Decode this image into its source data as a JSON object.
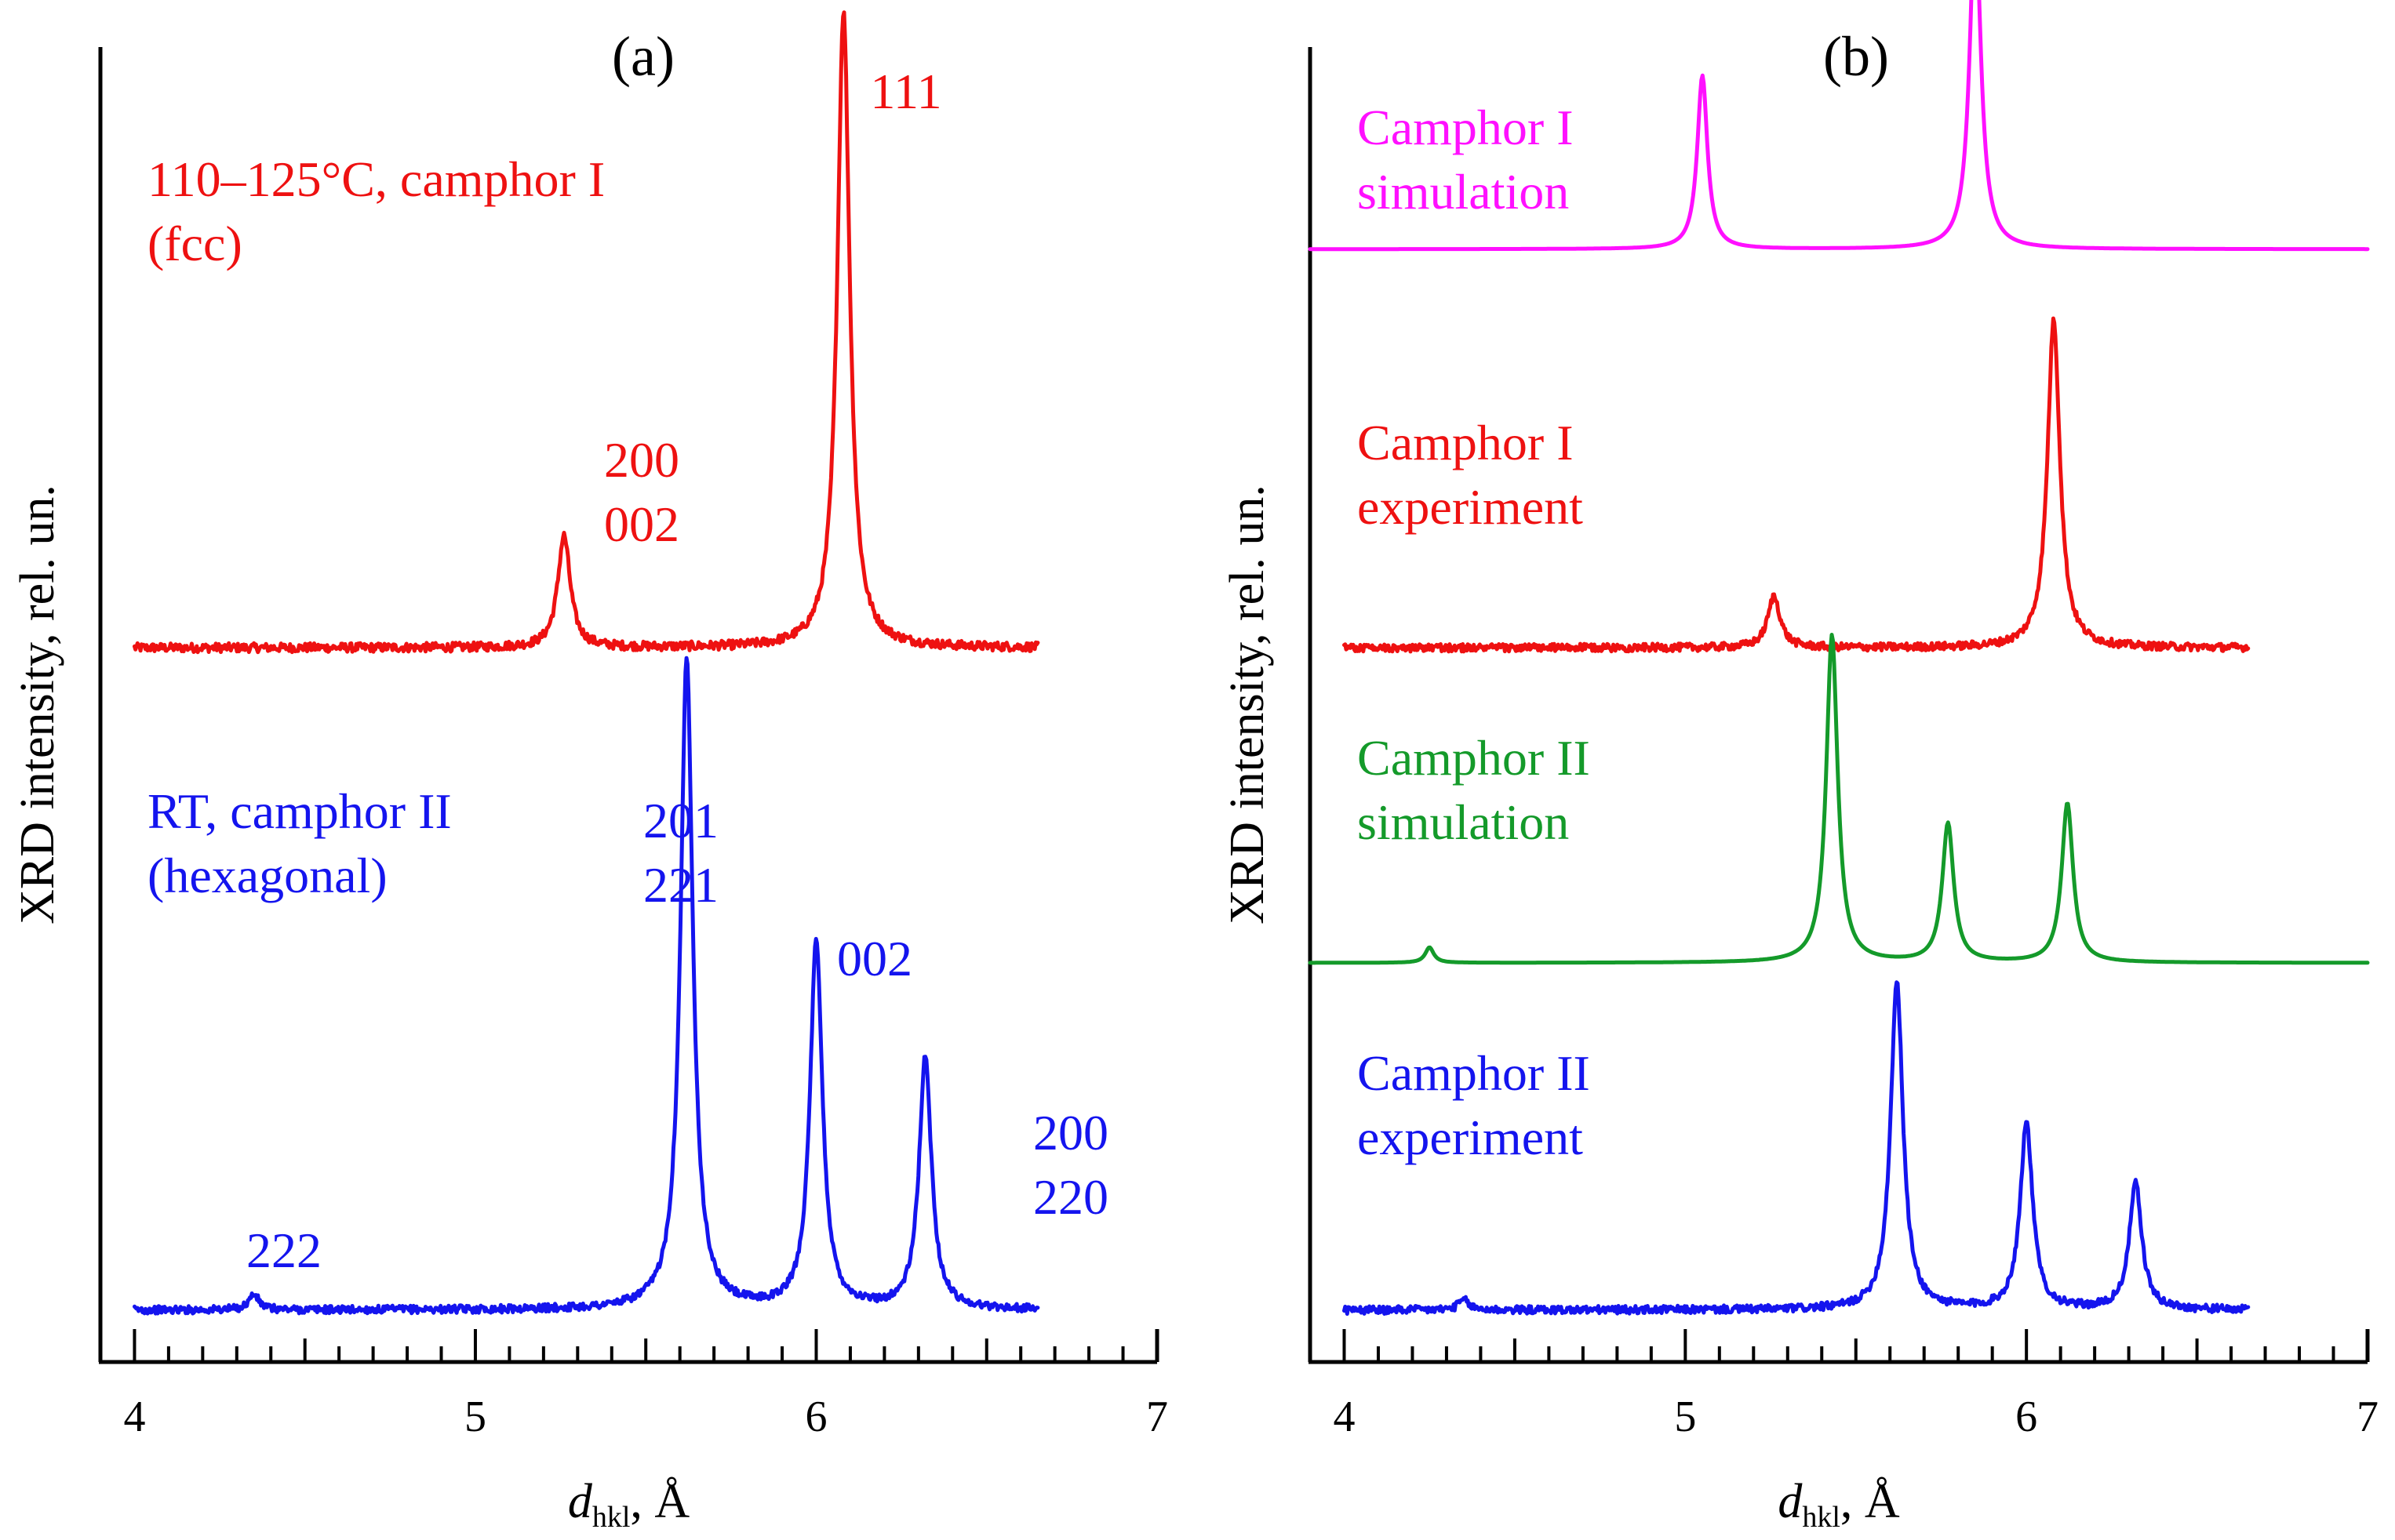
{
  "colors": {
    "red": "#ee1111",
    "blue": "#1414ee",
    "green": "#149a2a",
    "magenta": "#ff10ff",
    "axis": "#000000"
  },
  "chart_data": [
    {
      "type": "line",
      "panel_label": "(a)",
      "xlabel_main": "d",
      "xlabel_sub": "hkl",
      "xlabel_unit": ", Å",
      "ylabel": "XRD intensity, rel. un.",
      "xlim": [
        3.9,
        7.0
      ],
      "x_major_ticks": [
        4,
        5,
        6,
        7
      ],
      "x_minor_step": 0.1,
      "ylim": [
        0,
        1
      ],
      "series": [
        {
          "name": "110–125°C, camphor I (fcc)",
          "label_lines": [
            "110–125°C, camphor I",
            "(fcc)"
          ],
          "color": "#ee1111",
          "x_range": [
            4.0,
            6.65
          ],
          "baseline": 0.545,
          "noise": 0.0035,
          "peaks": [
            {
              "x": 5.26,
              "h": 0.087,
              "w": 0.022,
              "hkl": [
                "200",
                "002"
              ]
            },
            {
              "x": 6.08,
              "h": 0.495,
              "w": 0.022,
              "hkl": [
                "111"
              ]
            }
          ]
        },
        {
          "name": "RT, camphor II (hexagonal)",
          "label_lines": [
            "RT, camphor II",
            "(hexagonal)"
          ],
          "color": "#1414ee",
          "x_range": [
            4.0,
            6.65
          ],
          "baseline": 0.03,
          "noise": 0.003,
          "peaks": [
            {
              "x": 4.35,
              "h": 0.012,
              "w": 0.018,
              "hkl": [
                "222"
              ]
            },
            {
              "x": 5.62,
              "h": 0.505,
              "w": 0.022,
              "hkl": [
                "201",
                "221"
              ]
            },
            {
              "x": 6.0,
              "h": 0.285,
              "w": 0.022,
              "hkl": [
                "002"
              ]
            },
            {
              "x": 6.32,
              "h": 0.195,
              "w": 0.022,
              "hkl": [
                "200",
                "220"
              ]
            }
          ]
        }
      ]
    },
    {
      "type": "line",
      "panel_label": "(b)",
      "xlabel_main": "d",
      "xlabel_sub": "hkl",
      "xlabel_unit": ", Å",
      "ylabel": "XRD intensity, rel. un.",
      "xlim": [
        3.9,
        7.0
      ],
      "x_major_ticks": [
        4,
        5,
        6,
        7
      ],
      "x_minor_step": 0.1,
      "ylim": [
        0,
        1
      ],
      "series": [
        {
          "name": "Camphor I simulation",
          "label_lines": [
            "Camphor I",
            "simulation"
          ],
          "color": "#ff10ff",
          "x_range": [
            3.9,
            7.0
          ],
          "baseline": 0.855,
          "noise": 0.0,
          "peaks": [
            {
              "x": 5.05,
              "h": 0.135,
              "w": 0.018
            },
            {
              "x": 5.85,
              "h": 0.26,
              "w": 0.02
            }
          ]
        },
        {
          "name": "Camphor I experiment",
          "label_lines": [
            "Camphor I",
            "experiment"
          ],
          "color": "#ee1111",
          "x_range": [
            4.0,
            6.65
          ],
          "baseline": 0.545,
          "noise": 0.003,
          "peaks": [
            {
              "x": 5.26,
              "h": 0.04,
              "w": 0.022
            },
            {
              "x": 6.08,
              "h": 0.255,
              "w": 0.022
            }
          ]
        },
        {
          "name": "Camphor II simulation",
          "label_lines": [
            "Camphor II",
            "simulation"
          ],
          "color": "#149a2a",
          "x_range": [
            3.9,
            7.0
          ],
          "baseline": 0.3,
          "noise": 0.0,
          "peaks": [
            {
              "x": 4.25,
              "h": 0.012,
              "w": 0.015
            },
            {
              "x": 5.43,
              "h": 0.255,
              "w": 0.02
            },
            {
              "x": 5.77,
              "h": 0.108,
              "w": 0.02
            },
            {
              "x": 6.12,
              "h": 0.124,
              "w": 0.02
            }
          ]
        },
        {
          "name": "Camphor II experiment",
          "label_lines": [
            "Camphor II",
            "experiment"
          ],
          "color": "#1414ee",
          "x_range": [
            4.0,
            6.65
          ],
          "baseline": 0.03,
          "noise": 0.003,
          "peaks": [
            {
              "x": 4.35,
              "h": 0.008,
              "w": 0.018
            },
            {
              "x": 5.62,
              "h": 0.255,
              "w": 0.022
            },
            {
              "x": 6.0,
              "h": 0.145,
              "w": 0.022
            },
            {
              "x": 6.32,
              "h": 0.098,
              "w": 0.022
            }
          ]
        }
      ]
    }
  ]
}
